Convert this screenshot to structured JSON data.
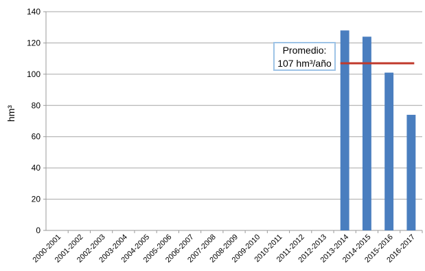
{
  "chart_data": {
    "type": "bar",
    "categories": [
      "2000-2001",
      "2001-2002",
      "2002-2003",
      "2003-2004",
      "2004-2005",
      "2005-2006",
      "2006-2007",
      "2007-2008",
      "2008-2009",
      "2009-2010",
      "2010-2011",
      "2011-2012",
      "2012-2013",
      "2013-2014",
      "2014-2015",
      "2015-2016",
      "2016-2017"
    ],
    "values": [
      0,
      0,
      0,
      0,
      0,
      0,
      0,
      0,
      0,
      0,
      0,
      0,
      0,
      128,
      124,
      101,
      74
    ],
    "title": "",
    "xlabel": "",
    "ylabel": "hm³",
    "ylim": [
      0,
      140
    ],
    "yticks": [
      0,
      20,
      40,
      60,
      80,
      100,
      120,
      140
    ],
    "grid": true,
    "bar_color": "#4a7ebf",
    "average": {
      "value": 107,
      "color": "#c0392b",
      "label_line1": "Promedio:",
      "label_line2": "107 hm³/año"
    }
  }
}
